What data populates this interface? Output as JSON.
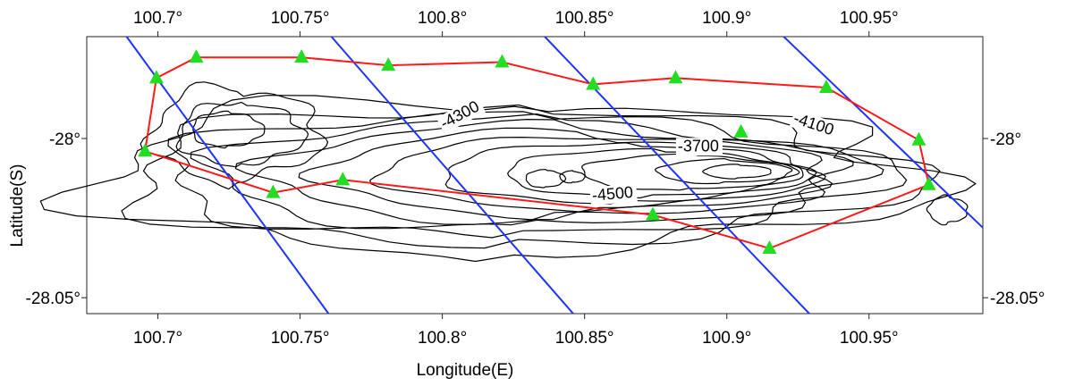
{
  "map": {
    "lon_range": [
      100.675,
      100.99
    ],
    "lat_range": [
      -28.055,
      -27.968
    ],
    "x_axis_title": "Longitude(E)",
    "y_axis_title": "Latitude(S)",
    "x_ticks": [
      {
        "value": 100.7,
        "label": "100.7°"
      },
      {
        "value": 100.75,
        "label": "100.75°"
      },
      {
        "value": 100.8,
        "label": "100.8°"
      },
      {
        "value": 100.85,
        "label": "100.85°"
      },
      {
        "value": 100.9,
        "label": "100.9°"
      },
      {
        "value": 100.95,
        "label": "100.95°"
      }
    ],
    "y_ticks": [
      {
        "value": -28.0,
        "label": "-28°"
      },
      {
        "value": -28.05,
        "label": "-28.05°"
      }
    ],
    "contour_labels": [
      {
        "text": "-4300",
        "lon": 100.807,
        "lat": -27.994,
        "rotate": -28
      },
      {
        "text": "-3700",
        "lon": 100.89,
        "lat": -28.004,
        "rotate": 0
      },
      {
        "text": "-4100",
        "lon": 100.93,
        "lat": -27.997,
        "rotate": 18
      },
      {
        "text": "-4500",
        "lon": 100.86,
        "lat": -28.019,
        "rotate": -5
      }
    ],
    "colors": {
      "survey_line": "#1f35ff",
      "boundary": "#ff1a1a",
      "station": "#22dd22"
    },
    "stations": [
      {
        "lon": 100.6995,
        "lat": -27.981
      },
      {
        "lon": 100.7135,
        "lat": -27.9745
      },
      {
        "lon": 100.7505,
        "lat": -27.9745
      },
      {
        "lon": 100.781,
        "lat": -27.977
      },
      {
        "lon": 100.821,
        "lat": -27.976
      },
      {
        "lon": 100.853,
        "lat": -27.983
      },
      {
        "lon": 100.882,
        "lat": -27.981
      },
      {
        "lon": 100.935,
        "lat": -27.984
      },
      {
        "lon": 100.9675,
        "lat": -28.0005
      },
      {
        "lon": 100.971,
        "lat": -28.0145
      },
      {
        "lon": 100.915,
        "lat": -28.0345
      },
      {
        "lon": 100.874,
        "lat": -28.024
      },
      {
        "lon": 100.765,
        "lat": -28.013
      },
      {
        "lon": 100.7405,
        "lat": -28.017
      },
      {
        "lon": 100.6955,
        "lat": -28.004
      },
      {
        "lon": 100.905,
        "lat": -27.998
      }
    ],
    "boundary": [
      {
        "lon": 100.6995,
        "lat": -27.981
      },
      {
        "lon": 100.7135,
        "lat": -27.9745
      },
      {
        "lon": 100.7505,
        "lat": -27.9745
      },
      {
        "lon": 100.781,
        "lat": -27.977
      },
      {
        "lon": 100.821,
        "lat": -27.976
      },
      {
        "lon": 100.853,
        "lat": -27.983
      },
      {
        "lon": 100.882,
        "lat": -27.981
      },
      {
        "lon": 100.935,
        "lat": -27.984
      },
      {
        "lon": 100.9675,
        "lat": -28.0005
      },
      {
        "lon": 100.971,
        "lat": -28.0145
      },
      {
        "lon": 100.915,
        "lat": -28.0345
      },
      {
        "lon": 100.874,
        "lat": -28.024
      },
      {
        "lon": 100.765,
        "lat": -28.013
      },
      {
        "lon": 100.7405,
        "lat": -28.017
      },
      {
        "lon": 100.6955,
        "lat": -28.004
      },
      {
        "lon": 100.6995,
        "lat": -27.981
      }
    ],
    "survey_lines": [
      {
        "start": {
          "lon": 100.689,
          "lat": -27.968
        },
        "end": {
          "lon": 100.76,
          "lat": -28.055
        }
      },
      {
        "start": {
          "lon": 100.761,
          "lat": -27.968
        },
        "end": {
          "lon": 100.846,
          "lat": -28.055
        }
      },
      {
        "start": {
          "lon": 100.836,
          "lat": -27.968
        },
        "end": {
          "lon": 100.929,
          "lat": -28.055
        }
      },
      {
        "start": {
          "lon": 100.92,
          "lat": -27.968
        },
        "end": {
          "lon": 100.99,
          "lat": -28.028
        }
      }
    ]
  }
}
